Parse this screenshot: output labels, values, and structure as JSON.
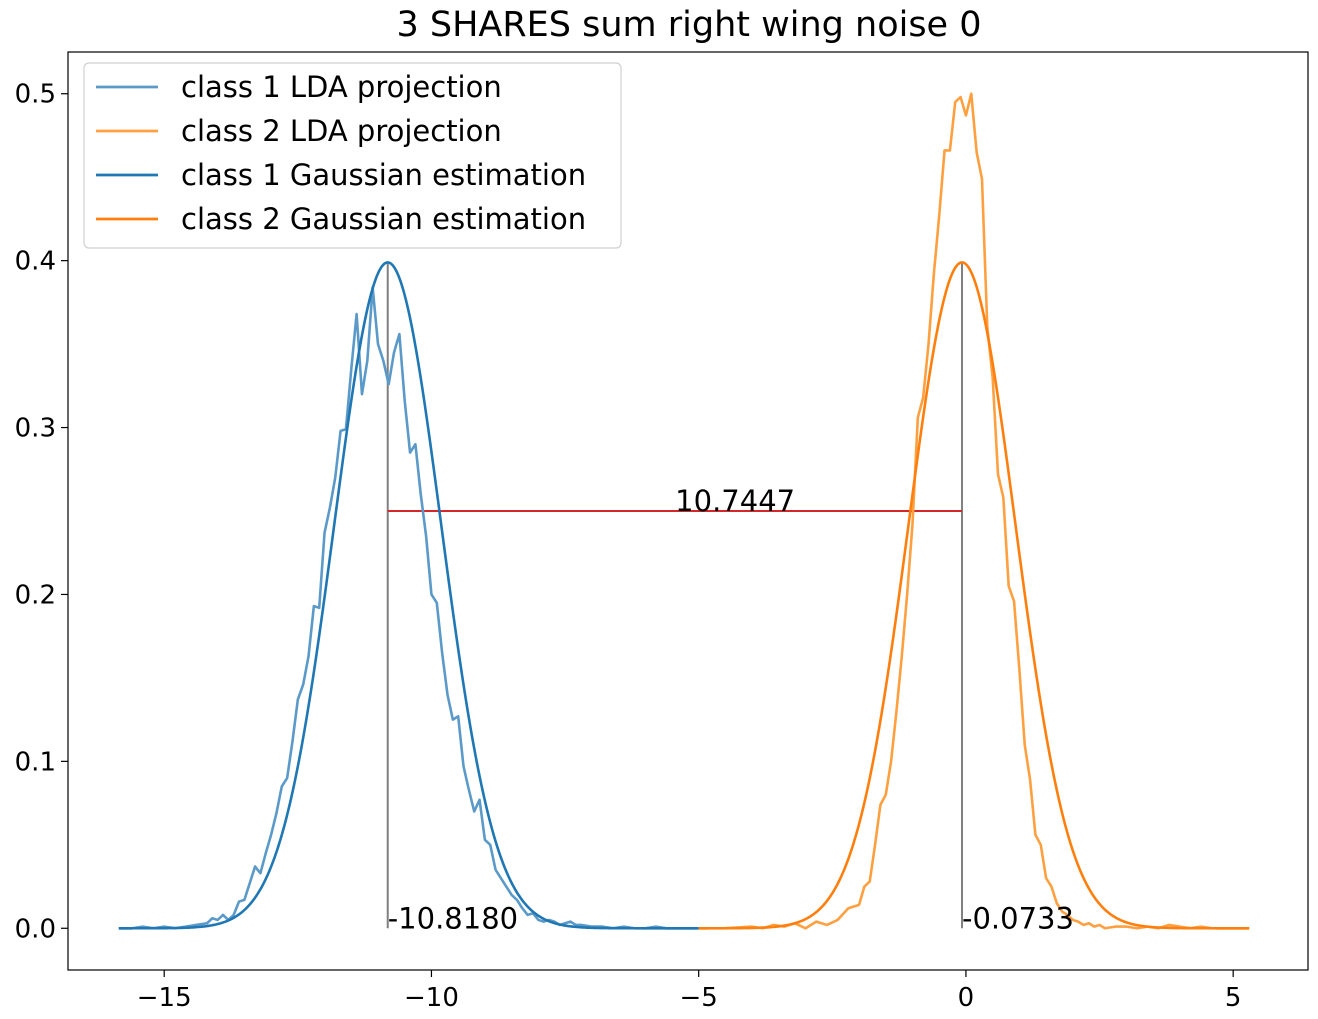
{
  "chart_data": {
    "type": "line",
    "title": "3 SHARES sum right wing noise 0",
    "xlabel": "",
    "ylabel": "",
    "xlim": [
      -16.8,
      6.4
    ],
    "ylim": [
      -0.025,
      0.525
    ],
    "xticks": [
      {
        "value": -15,
        "label": "−15"
      },
      {
        "value": -10,
        "label": "−10"
      },
      {
        "value": -5,
        "label": "−5"
      },
      {
        "value": 0,
        "label": "0"
      },
      {
        "value": 5,
        "label": "5"
      }
    ],
    "yticks": [
      {
        "value": 0.0,
        "label": "0.0"
      },
      {
        "value": 0.1,
        "label": "0.1"
      },
      {
        "value": 0.2,
        "label": "0.2"
      },
      {
        "value": 0.3,
        "label": "0.3"
      },
      {
        "value": 0.4,
        "label": "0.4"
      },
      {
        "value": 0.5,
        "label": "0.5"
      }
    ],
    "grid": false,
    "legend_position": "top-left",
    "series": [
      {
        "name": "class 1 LDA projection",
        "color": "#5b9ac8",
        "x": [
          -15.85,
          -15.6,
          -15.4,
          -15.2,
          -15.0,
          -14.8,
          -14.6,
          -14.4,
          -14.2,
          -14.1,
          -14.0,
          -13.9,
          -13.8,
          -13.7,
          -13.6,
          -13.5,
          -13.4,
          -13.3,
          -13.2,
          -13.1,
          -13.0,
          -12.9,
          -12.8,
          -12.7,
          -12.6,
          -12.5,
          -12.4,
          -12.3,
          -12.2,
          -12.1,
          -12.0,
          -11.9,
          -11.8,
          -11.7,
          -11.6,
          -11.5,
          -11.4,
          -11.3,
          -11.2,
          -11.1,
          -11.0,
          -10.9,
          -10.8,
          -10.7,
          -10.6,
          -10.5,
          -10.4,
          -10.3,
          -10.2,
          -10.1,
          -10.0,
          -9.9,
          -9.8,
          -9.7,
          -9.6,
          -9.5,
          -9.4,
          -9.3,
          -9.2,
          -9.1,
          -9.0,
          -8.9,
          -8.8,
          -8.7,
          -8.6,
          -8.5,
          -8.4,
          -8.3,
          -8.2,
          -8.1,
          -8.0,
          -7.9,
          -7.8,
          -7.7,
          -7.6,
          -7.5,
          -7.4,
          -7.3,
          -7.2,
          -7.0,
          -6.8,
          -6.6,
          -6.4,
          -6.2,
          -6.0,
          -5.8,
          -5.6,
          -5.4,
          -5.2,
          -5.0
        ],
        "y": [
          0.0,
          0.0,
          0.001,
          0.0,
          0.001,
          0.0,
          0.001,
          0.002,
          0.003,
          0.006,
          0.005,
          0.008,
          0.005,
          0.008,
          0.016,
          0.017,
          0.027,
          0.037,
          0.033,
          0.045,
          0.056,
          0.069,
          0.085,
          0.09,
          0.112,
          0.137,
          0.146,
          0.163,
          0.193,
          0.192,
          0.237,
          0.252,
          0.27,
          0.298,
          0.299,
          0.335,
          0.368,
          0.32,
          0.34,
          0.384,
          0.35,
          0.34,
          0.326,
          0.345,
          0.356,
          0.316,
          0.285,
          0.29,
          0.26,
          0.235,
          0.2,
          0.195,
          0.165,
          0.14,
          0.125,
          0.127,
          0.097,
          0.083,
          0.07,
          0.077,
          0.053,
          0.05,
          0.035,
          0.03,
          0.025,
          0.02,
          0.017,
          0.012,
          0.008,
          0.009,
          0.005,
          0.004,
          0.005,
          0.004,
          0.002,
          0.003,
          0.004,
          0.002,
          0.002,
          0.001,
          0.001,
          0.0,
          0.001,
          0.0,
          0.0,
          0.001,
          0.0,
          0.0,
          0.0,
          0.0
        ]
      },
      {
        "name": "class 2 LDA projection",
        "color": "#ffa040",
        "x": [
          -5.0,
          -4.5,
          -4.0,
          -3.8,
          -3.6,
          -3.4,
          -3.2,
          -3.0,
          -2.8,
          -2.6,
          -2.4,
          -2.2,
          -2.0,
          -1.9,
          -1.8,
          -1.7,
          -1.6,
          -1.5,
          -1.4,
          -1.3,
          -1.2,
          -1.1,
          -1.0,
          -0.9,
          -0.8,
          -0.7,
          -0.6,
          -0.5,
          -0.4,
          -0.3,
          -0.2,
          -0.1,
          0.0,
          0.1,
          0.2,
          0.3,
          0.4,
          0.5,
          0.6,
          0.7,
          0.8,
          0.9,
          1.0,
          1.1,
          1.2,
          1.3,
          1.4,
          1.5,
          1.6,
          1.7,
          1.8,
          1.9,
          2.0,
          2.1,
          2.2,
          2.3,
          2.4,
          2.5,
          2.6,
          2.8,
          3.0,
          3.2,
          3.4,
          3.6,
          3.8,
          4.0,
          4.2,
          4.4,
          4.6,
          4.8,
          5.0,
          5.3
        ],
        "y": [
          0.0,
          0.0,
          0.001,
          0.0,
          0.002,
          0.001,
          0.003,
          0.0,
          0.004,
          0.002,
          0.005,
          0.012,
          0.014,
          0.025,
          0.028,
          0.05,
          0.074,
          0.08,
          0.1,
          0.13,
          0.163,
          0.2,
          0.242,
          0.306,
          0.318,
          0.35,
          0.392,
          0.427,
          0.466,
          0.466,
          0.495,
          0.498,
          0.487,
          0.5,
          0.465,
          0.449,
          0.36,
          0.33,
          0.272,
          0.258,
          0.205,
          0.196,
          0.155,
          0.11,
          0.089,
          0.056,
          0.05,
          0.03,
          0.025,
          0.015,
          0.01,
          0.008,
          0.005,
          0.004,
          0.002,
          0.003,
          0.001,
          0.002,
          0.0,
          0.001,
          0.001,
          0.0,
          0.001,
          0.0,
          0.002,
          0.001,
          0.0,
          0.001,
          0.0,
          0.0,
          0.0,
          0.0
        ]
      },
      {
        "name": "class 1 Gaussian estimation",
        "color": "#1f77b4",
        "type": "gaussian",
        "mean": -10.818,
        "sigma": 1.0,
        "x_range": [
          -15.85,
          -5.0
        ]
      },
      {
        "name": "class 2 Gaussian estimation",
        "color": "#ff7f0e",
        "type": "gaussian",
        "mean": -0.0733,
        "sigma": 1.0,
        "x_range": [
          -5.0,
          5.3
        ]
      }
    ],
    "annotations": [
      {
        "label": "-10.8180",
        "x": -10.818,
        "y": 0.0,
        "color": "#808080",
        "vline_to": 0.399
      },
      {
        "label": "-0.0733",
        "x": -0.0733,
        "y": 0.0,
        "color": "#808080",
        "vline_to": 0.399
      },
      {
        "label": "10.7447",
        "x": -5.44,
        "y": 0.25,
        "color": "#d62728",
        "hline_from": -10.818,
        "hline_to": -0.0733
      }
    ]
  }
}
